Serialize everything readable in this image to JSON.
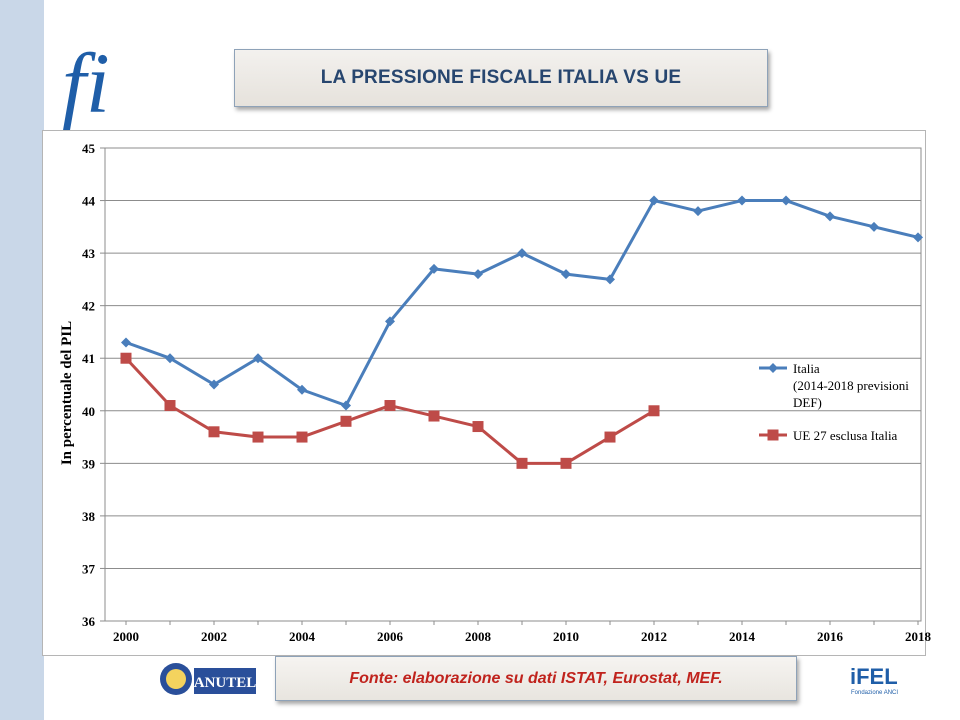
{
  "title": "LA PRESSIONE FISCALE ITALIA VS UE",
  "source": "Fonte: elaborazione su dati ISTAT, Eurostat, MEF.",
  "logos": {
    "top_left_mark": "fi",
    "bottom_left_name": "ANUTEL",
    "bottom_right_name": "iFEL",
    "bottom_right_sub": "Fondazione ANCI"
  },
  "colors": {
    "italia": "#4a7ebb",
    "ue": "#be4b48",
    "title_text": "#27466f",
    "source_text": "#c0231d"
  },
  "chart_data": {
    "type": "line",
    "title": "",
    "xlabel": "",
    "ylabel": "In percentuale del PIL",
    "ylim": [
      36,
      45
    ],
    "yticks": [
      36,
      37,
      38,
      39,
      40,
      41,
      42,
      43,
      44,
      45
    ],
    "xlim": [
      2000,
      2018
    ],
    "xticks": [
      2000,
      2002,
      2004,
      2006,
      2008,
      2010,
      2012,
      2014,
      2016,
      2018
    ],
    "grid": "horizontal",
    "legend_position": "right",
    "series": [
      {
        "name": "Italia (2014-2018 previsioni DEF)",
        "legend_lines": [
          "Italia",
          "(2014-2018 previsioni",
          "DEF)"
        ],
        "marker": "diamond",
        "x": [
          2000,
          2001,
          2002,
          2003,
          2004,
          2005,
          2006,
          2007,
          2008,
          2009,
          2010,
          2011,
          2012,
          2013,
          2014,
          2015,
          2016,
          2017,
          2018
        ],
        "values": [
          41.3,
          41.0,
          40.5,
          41.0,
          40.4,
          40.1,
          41.7,
          42.7,
          42.6,
          43.0,
          42.6,
          42.5,
          44.0,
          43.8,
          44.0,
          44.0,
          43.7,
          43.5,
          43.3
        ]
      },
      {
        "name": "UE 27 esclusa Italia",
        "legend_lines": [
          "UE 27 esclusa Italia"
        ],
        "marker": "square",
        "x": [
          2000,
          2001,
          2002,
          2003,
          2004,
          2005,
          2006,
          2007,
          2008,
          2009,
          2010,
          2011,
          2012
        ],
        "values": [
          41.0,
          40.1,
          39.6,
          39.5,
          39.5,
          39.8,
          40.1,
          39.9,
          39.7,
          39.0,
          39.0,
          39.5,
          40.0
        ]
      }
    ]
  }
}
